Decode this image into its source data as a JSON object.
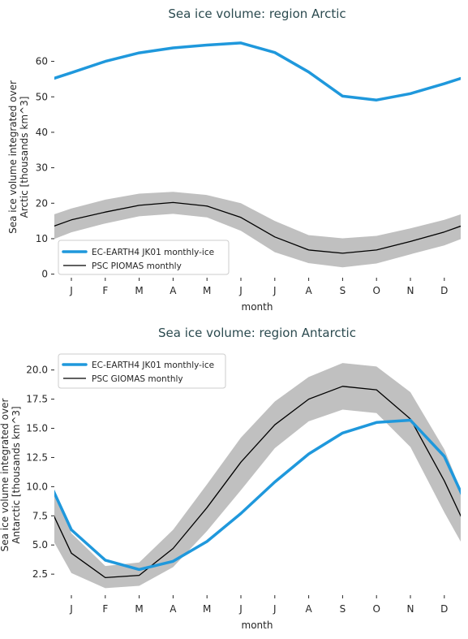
{
  "chart_data": [
    {
      "type": "line",
      "title": "Sea ice volume: region Arctic",
      "xlabel": "month",
      "ylabel": "Sea ice volume integrated over Arctic [thousands km^3]",
      "categories": [
        "J",
        "F",
        "M",
        "A",
        "M",
        "J",
        "J",
        "A",
        "S",
        "O",
        "N",
        "D"
      ],
      "yticks": [
        0,
        10,
        20,
        30,
        40,
        50,
        60
      ],
      "ylim": [
        -1,
        67
      ],
      "grid": false,
      "legend_position": "lower-left",
      "series": [
        {
          "name": "EC-EARTH4 JK01 monthly-ice",
          "color": "#1f98dc",
          "values": [
            56.8,
            60.0,
            62.4,
            63.8,
            64.6,
            65.2,
            62.5,
            57.0,
            50.2,
            49.1,
            50.9,
            53.7
          ]
        },
        {
          "name": "PSC PIOMAS monthly",
          "color": "#000000",
          "values": [
            15.3,
            17.5,
            19.4,
            20.2,
            19.2,
            16.0,
            10.5,
            6.8,
            5.9,
            6.8,
            9.2,
            11.9
          ],
          "band_lower": [
            11.8,
            14.3,
            16.3,
            17.0,
            16.0,
            12.2,
            6.2,
            3.1,
            1.9,
            3.0,
            5.6,
            8.1
          ],
          "band_upper": [
            18.5,
            21.0,
            22.7,
            23.2,
            22.3,
            20.0,
            15.0,
            11.0,
            10.1,
            10.8,
            12.9,
            15.3
          ]
        }
      ]
    },
    {
      "type": "line",
      "title": "Sea ice volume: region Antarctic",
      "xlabel": "month",
      "ylabel": "Sea ice volume integrated over Antarctic [thousands km^3]",
      "categories": [
        "J",
        "F",
        "M",
        "A",
        "M",
        "J",
        "J",
        "A",
        "S",
        "O",
        "N",
        "D"
      ],
      "yticks": [
        2.5,
        5.0,
        7.5,
        10.0,
        12.5,
        15.0,
        17.5,
        20.0
      ],
      "ylim": [
        0.7,
        21.3
      ],
      "grid": false,
      "legend_position": "upper-left",
      "series": [
        {
          "name": "EC-EARTH4 JK01 monthly-ice",
          "color": "#1f98dc",
          "values": [
            6.3,
            3.7,
            2.9,
            3.6,
            5.3,
            7.7,
            10.4,
            12.8,
            14.6,
            15.5,
            15.7,
            12.6
          ]
        },
        {
          "name": "PSC GIOMAS monthly",
          "color": "#000000",
          "values": [
            4.3,
            2.2,
            2.4,
            4.7,
            8.2,
            12.1,
            15.3,
            17.5,
            18.6,
            18.3,
            15.8,
            10.5
          ],
          "band_lower": [
            2.6,
            1.3,
            1.5,
            3.1,
            6.2,
            9.7,
            13.3,
            15.6,
            16.6,
            16.3,
            13.4,
            7.8
          ],
          "band_upper": [
            6.0,
            3.2,
            3.5,
            6.3,
            10.2,
            14.2,
            17.3,
            19.4,
            20.6,
            20.3,
            18.1,
            13.2
          ]
        }
      ]
    }
  ]
}
